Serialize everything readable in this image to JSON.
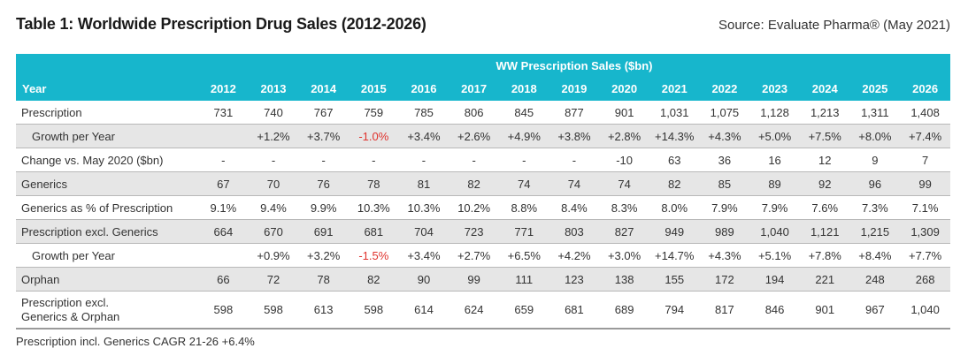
{
  "title": "Table 1: Worldwide Prescription Drug Sales (2012-2026)",
  "source": "Source: Evaluate Pharma® (May 2021)",
  "table": {
    "group_header": "WW Prescription Sales ($bn)",
    "year_label": "Year",
    "years": [
      "2012",
      "2013",
      "2014",
      "2015",
      "2016",
      "2017",
      "2018",
      "2019",
      "2020",
      "2021",
      "2022",
      "2023",
      "2024",
      "2025",
      "2026"
    ],
    "rows": [
      {
        "label": "Prescription",
        "indent": false,
        "shaded": false,
        "values": [
          "731",
          "740",
          "767",
          "759",
          "785",
          "806",
          "845",
          "877",
          "901",
          "1,031",
          "1,075",
          "1,128",
          "1,213",
          "1,311",
          "1,408"
        ]
      },
      {
        "label": "Growth per Year",
        "indent": true,
        "shaded": true,
        "values": [
          "",
          "+1.2%",
          "+3.7%",
          "-1.0%",
          "+3.4%",
          "+2.6%",
          "+4.9%",
          "+3.8%",
          "+2.8%",
          "+14.3%",
          "+4.3%",
          "+5.0%",
          "+7.5%",
          "+8.0%",
          "+7.4%"
        ]
      },
      {
        "label": "Change vs. May 2020 ($bn)",
        "indent": false,
        "shaded": false,
        "values": [
          "-",
          "-",
          "-",
          "-",
          "-",
          "-",
          "-",
          "-",
          "-10",
          "63",
          "36",
          "16",
          "12",
          "9",
          "7"
        ]
      },
      {
        "label": "Generics",
        "indent": false,
        "shaded": true,
        "values": [
          "67",
          "70",
          "76",
          "78",
          "81",
          "82",
          "74",
          "74",
          "74",
          "82",
          "85",
          "89",
          "92",
          "96",
          "99"
        ]
      },
      {
        "label": "Generics as % of Prescription",
        "indent": false,
        "shaded": false,
        "values": [
          "9.1%",
          "9.4%",
          "9.9%",
          "10.3%",
          "10.3%",
          "10.2%",
          "8.8%",
          "8.4%",
          "8.3%",
          "8.0%",
          "7.9%",
          "7.9%",
          "7.6%",
          "7.3%",
          "7.1%"
        ]
      },
      {
        "label": "Prescription excl. Generics",
        "indent": false,
        "shaded": true,
        "values": [
          "664",
          "670",
          "691",
          "681",
          "704",
          "723",
          "771",
          "803",
          "827",
          "949",
          "989",
          "1,040",
          "1,121",
          "1,215",
          "1,309"
        ]
      },
      {
        "label": "Growth per Year",
        "indent": true,
        "shaded": false,
        "values": [
          "",
          "+0.9%",
          "+3.2%",
          "-1.5%",
          "+3.4%",
          "+2.7%",
          "+6.5%",
          "+4.2%",
          "+3.0%",
          "+14.7%",
          "+4.3%",
          "+5.1%",
          "+7.8%",
          "+8.4%",
          "+7.7%"
        ]
      },
      {
        "label": "Orphan",
        "indent": false,
        "shaded": true,
        "values": [
          "66",
          "72",
          "78",
          "82",
          "90",
          "99",
          "111",
          "123",
          "138",
          "155",
          "172",
          "194",
          "221",
          "248",
          "268"
        ]
      },
      {
        "label_line1": "Prescription excl.",
        "label_line2": "Generics & Orphan",
        "indent": false,
        "shaded": false,
        "tall": true,
        "values": [
          "598",
          "598",
          "613",
          "598",
          "614",
          "624",
          "659",
          "681",
          "689",
          "794",
          "817",
          "846",
          "901",
          "967",
          "1,040"
        ]
      }
    ]
  },
  "footnote": "Prescription incl. Generics CAGR 21-26 +6.4%",
  "colors": {
    "header_bg": "#17b6cc",
    "negative": "#e0322d",
    "shade": "#e6e6e6"
  }
}
